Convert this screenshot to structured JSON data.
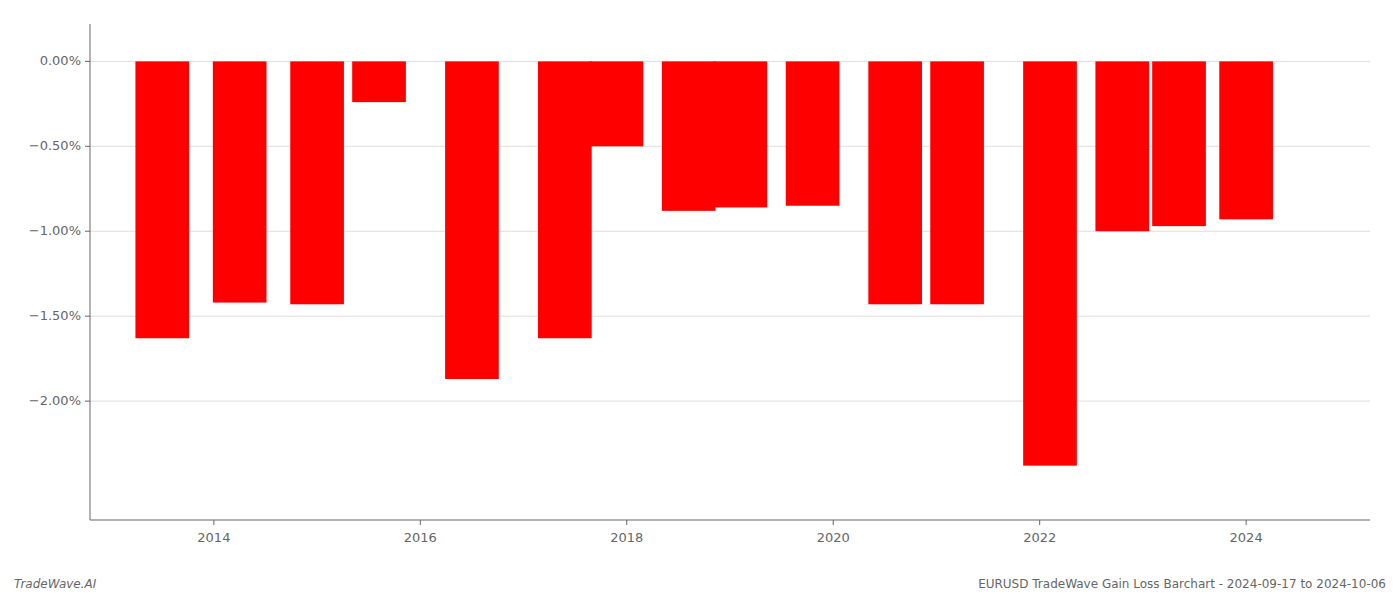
{
  "chart_data": {
    "type": "bar",
    "x": [
      2013.5,
      2014.25,
      2015.0,
      2015.6,
      2016.5,
      2017.4,
      2017.9,
      2018.6,
      2019.1,
      2019.8,
      2020.6,
      2021.2,
      2022.1,
      2022.8,
      2023.35,
      2024.0
    ],
    "values": [
      -1.63,
      -1.42,
      -1.43,
      -0.24,
      -1.87,
      -1.63,
      -0.5,
      -0.88,
      -0.86,
      -0.85,
      -1.43,
      -1.43,
      -2.38,
      -1.0,
      -0.97,
      -0.93
    ],
    "color": "#FF0000",
    "xlim": [
      2012.8,
      2025.2
    ],
    "xticks": [
      2014,
      2016,
      2018,
      2020,
      2022,
      2024
    ],
    "ylim": [
      -2.7,
      0.22
    ],
    "yticks": [
      {
        "value": 0.0,
        "label": "0.00%"
      },
      {
        "value": -0.5,
        "label": "−0.50%"
      },
      {
        "value": -1.0,
        "label": "−1.00%"
      },
      {
        "value": -1.5,
        "label": "−1.50%"
      },
      {
        "value": -2.0,
        "label": "−2.00%"
      }
    ],
    "grid": true,
    "annotations": [
      "TradeWave.AI",
      "EURUSD TradeWave Gain Loss Barchart - 2024-09-17 to 2024-10-06"
    ]
  }
}
